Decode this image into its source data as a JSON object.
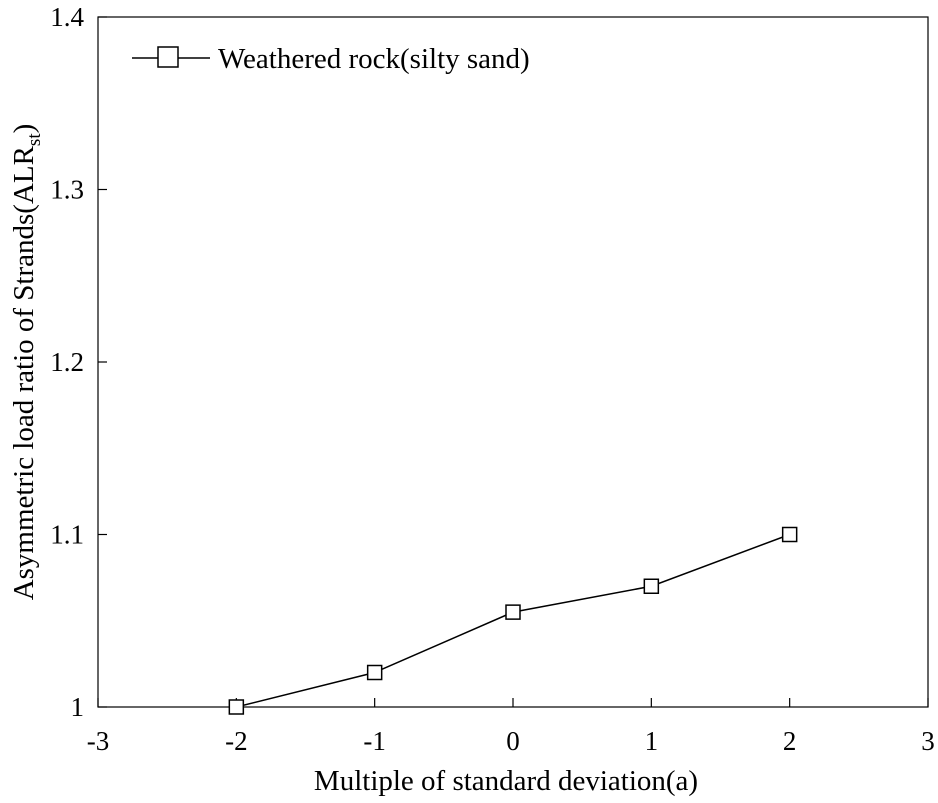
{
  "chart_data": {
    "type": "line",
    "xlabel": "Multiple of standard deviation(a)",
    "ylabel": {
      "main": "Asymmetric load ratio of Strands(ALR",
      "sub": "st",
      "close": ")"
    },
    "xlim": [
      -3,
      3
    ],
    "ylim": [
      1.0,
      1.4
    ],
    "xticks": [
      -3,
      -2,
      -1,
      0,
      1,
      2,
      3
    ],
    "xtick_labels": [
      "-3",
      "-2",
      "-1",
      "0",
      "1",
      "2",
      "3"
    ],
    "yticks": [
      1.0,
      1.1,
      1.2,
      1.3,
      1.4
    ],
    "ytick_labels": [
      "1",
      "1.1",
      "1.2",
      "1.3",
      "1.4"
    ],
    "grid": false,
    "legend": {
      "position": "top-left"
    },
    "series": [
      {
        "name": "Weathered rock(silty sand)",
        "marker": "open-square",
        "color": "#000000",
        "x": [
          -2,
          -1,
          0,
          1,
          2
        ],
        "y": [
          1.0,
          1.02,
          1.055,
          1.07,
          1.1
        ]
      }
    ]
  }
}
